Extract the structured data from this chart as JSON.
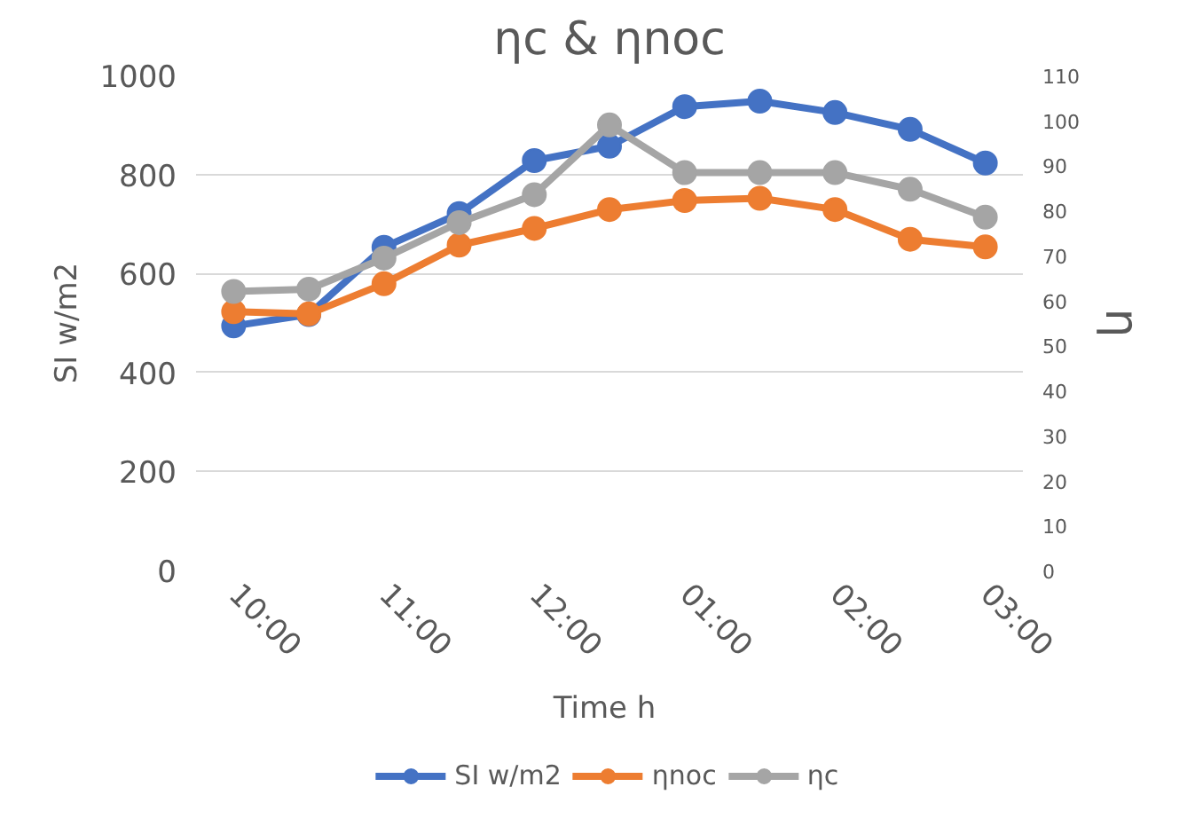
{
  "chart_data": {
    "type": "line",
    "title": "ηc & ηnoc",
    "xlabel": "Time  h",
    "ylabel": "SI w/m2",
    "y2label": "η",
    "categories": [
      "10:00",
      null,
      "11:00",
      null,
      "12:00",
      null,
      "01:00",
      null,
      "02:00",
      null,
      "03:00"
    ],
    "series": [
      {
        "name": "SI w/m2",
        "color": "#4472c4",
        "values": [
          494,
          517,
          653,
          721,
          828,
          857,
          937,
          948,
          925,
          891,
          823
        ]
      },
      {
        "name": "ηnoc",
        "color": "#ed7d31",
        "axis": "y2",
        "values": [
          57.5,
          57,
          63.7,
          72.3,
          76,
          80.2,
          82.2,
          82.7,
          80.2,
          73.6,
          71.9
        ]
      },
      {
        "name": "ηc",
        "color": "#a5a5a5",
        "axis": "y2",
        "values": [
          62,
          62.5,
          69.4,
          77.3,
          83.5,
          99,
          88.4,
          88.4,
          88.4,
          84.7,
          78.5
        ]
      }
    ],
    "ylim": [
      0,
      1000
    ],
    "yticks": [
      0,
      200,
      400,
      600,
      800,
      1000
    ],
    "y2lim": [
      0,
      110
    ],
    "y2ticks": [
      0,
      10,
      20,
      30,
      40,
      50,
      60,
      70,
      80,
      90,
      100,
      110
    ],
    "grid": "y",
    "legend": "bottom",
    "marker": "circle",
    "line_style": "solid"
  }
}
